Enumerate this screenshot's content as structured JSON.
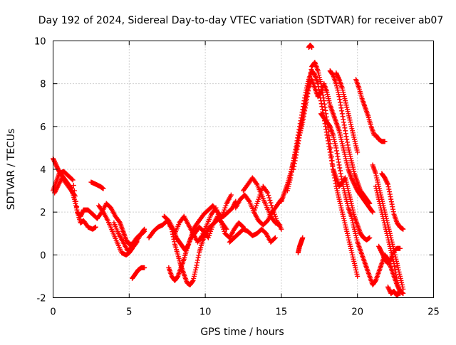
{
  "chart_data": {
    "type": "scatter",
    "title": "Day 192 of 2024, Sidereal Day-to-day VTEC variation (SDTVAR) for receiver ab07",
    "xlabel": "GPS time / hours",
    "ylabel": "SDTVAR / TECUs",
    "xlim": [
      0,
      25
    ],
    "ylim": [
      -2,
      10
    ],
    "x_ticks": [
      0,
      5,
      10,
      15,
      20,
      25
    ],
    "x_tick_labels": [
      "0",
      "5",
      "10",
      "15",
      "20",
      "25"
    ],
    "y_ticks": [
      -2,
      0,
      2,
      4,
      6,
      8,
      10
    ],
    "y_tick_labels": [
      "-2",
      "0",
      "2",
      "4",
      "6",
      "8",
      "10"
    ],
    "grid": true,
    "marker": "+",
    "series": [
      {
        "name": "SDTVAR",
        "color": "#ff0000",
        "tracks": [
          {
            "x": [
              0.0,
              0.2,
              0.4,
              0.6,
              0.8,
              1.0,
              1.2,
              1.4,
              1.6,
              1.8,
              2.0,
              2.3,
              2.6,
              2.9,
              3.2,
              3.5,
              3.8,
              4.1,
              4.4,
              4.6,
              4.8,
              5.0,
              5.2,
              5.5,
              5.8,
              6.0
            ],
            "y": [
              4.5,
              4.2,
              3.9,
              3.7,
              3.5,
              3.3,
              3.1,
              2.6,
              2.0,
              1.8,
              2.1,
              2.1,
              1.9,
              1.7,
              2.0,
              2.4,
              2.2,
              1.8,
              1.5,
              1.1,
              0.7,
              0.5,
              0.5,
              0.8,
              1.0,
              1.2
            ]
          },
          {
            "x": [
              0.0,
              0.2,
              0.4,
              0.7,
              1.0,
              1.3,
              1.6,
              1.8,
              2.0,
              2.3,
              2.6,
              2.8
            ],
            "y": [
              3.0,
              3.4,
              3.8,
              3.9,
              3.7,
              3.5,
              2.0,
              1.5,
              1.6,
              1.3,
              1.2,
              1.3
            ]
          },
          {
            "x": [
              0.1,
              0.3,
              0.6,
              0.9,
              1.2,
              1.4
            ],
            "y": [
              2.9,
              3.2,
              3.6,
              3.3,
              3.0,
              2.8
            ]
          },
          {
            "x": [
              2.5,
              2.8,
              3.1,
              3.3
            ],
            "y": [
              3.4,
              3.3,
              3.2,
              3.1
            ]
          },
          {
            "x": [
              3.0,
              3.3,
              3.6,
              3.9,
              4.2,
              4.5,
              4.8,
              5.0,
              5.2,
              5.5
            ],
            "y": [
              2.3,
              2.0,
              1.6,
              1.1,
              0.6,
              0.1,
              0.0,
              0.1,
              0.3,
              0.6
            ]
          },
          {
            "x": [
              4.0,
              4.3,
              4.6,
              4.9,
              5.1,
              5.4,
              5.7,
              6.0
            ],
            "y": [
              1.5,
              1.0,
              0.6,
              0.2,
              0.3,
              0.5,
              0.9,
              1.1
            ]
          },
          {
            "x": [
              5.2,
              5.4,
              5.6,
              5.8,
              6.0
            ],
            "y": [
              -1.1,
              -0.9,
              -0.7,
              -0.6,
              -0.6
            ]
          },
          {
            "x": [
              6.3,
              6.6,
              6.9,
              7.2,
              7.5,
              7.8,
              8.0,
              8.2,
              8.4,
              8.6,
              8.8,
              9.0,
              9.2,
              9.4,
              9.6,
              9.8,
              10.0,
              10.3,
              10.6,
              10.9,
              11.2,
              11.5,
              11.8,
              12.0
            ],
            "y": [
              0.8,
              1.1,
              1.3,
              1.4,
              1.6,
              1.2,
              0.5,
              0.0,
              -0.5,
              -0.9,
              -1.3,
              -1.4,
              -1.2,
              -0.6,
              0.1,
              0.6,
              1.0,
              1.3,
              1.5,
              1.7,
              1.8,
              2.0,
              2.2,
              2.5
            ]
          },
          {
            "x": [
              7.3,
              7.6,
              7.9,
              8.1,
              8.3,
              8.5,
              8.7,
              8.9,
              9.1,
              9.3,
              9.6,
              9.9,
              10.2,
              10.5,
              10.8,
              11.1,
              11.4,
              11.7
            ],
            "y": [
              1.8,
              1.6,
              1.2,
              0.8,
              0.6,
              0.4,
              0.2,
              0.5,
              0.9,
              1.3,
              1.6,
              1.9,
              2.1,
              2.3,
              2.0,
              1.8,
              2.4,
              2.8
            ]
          },
          {
            "x": [
              7.6,
              7.8,
              8.0,
              8.2,
              8.4,
              8.6,
              8.8,
              9.0,
              9.3,
              9.6,
              9.9,
              10.2,
              10.5,
              10.8,
              11.1,
              11.4
            ],
            "y": [
              -0.6,
              -1.0,
              -1.2,
              -1.0,
              -0.6,
              -0.2,
              0.3,
              0.7,
              1.0,
              1.3,
              1.1,
              0.8,
              1.4,
              1.8,
              1.5,
              1.2
            ]
          },
          {
            "x": [
              8.0,
              8.3,
              8.6,
              8.9,
              9.2,
              9.5,
              9.8,
              10.1,
              10.4,
              10.7,
              11.0,
              11.3,
              11.6,
              11.9,
              12.2,
              12.5
            ],
            "y": [
              1.0,
              1.5,
              1.8,
              1.4,
              1.0,
              0.6,
              0.9,
              1.4,
              1.9,
              2.2,
              1.6,
              1.0,
              0.8,
              1.2,
              1.5,
              1.3
            ]
          },
          {
            "x": [
              12.0,
              12.3,
              12.6,
              12.9,
              13.2,
              13.5,
              13.8,
              14.1,
              14.4,
              14.7,
              15.0
            ],
            "y": [
              2.2,
              2.6,
              2.8,
              2.5,
              2.0,
              1.6,
              1.4,
              1.6,
              2.0,
              2.3,
              2.6
            ]
          },
          {
            "x": [
              12.5,
              12.8,
              13.1,
              13.4,
              13.7,
              14.0,
              14.3,
              14.6,
              14.9
            ],
            "y": [
              3.0,
              3.3,
              3.6,
              3.3,
              2.8,
              2.3,
              1.8,
              1.5,
              1.4
            ]
          },
          {
            "x": [
              11.6,
              11.9,
              12.2,
              12.5,
              12.8,
              13.1,
              13.4,
              13.7,
              14.0,
              14.3,
              14.6
            ],
            "y": [
              0.6,
              0.8,
              1.0,
              1.2,
              1.1,
              0.9,
              1.0,
              1.2,
              1.0,
              0.6,
              0.8
            ]
          },
          {
            "x": [
              13.2,
              13.5,
              13.8,
              14.1,
              14.4,
              14.7,
              15.0
            ],
            "y": [
              2.0,
              2.6,
              3.2,
              2.9,
              2.2,
              1.6,
              1.2
            ]
          },
          {
            "x": [
              15.0,
              15.2,
              15.4,
              15.6,
              15.8,
              16.0,
              16.2,
              16.4,
              16.6,
              16.8,
              17.0,
              17.2,
              17.4,
              17.6,
              17.8,
              18.0,
              18.2,
              18.4,
              18.6,
              18.8,
              19.0,
              19.2,
              19.4,
              19.6,
              19.8,
              20.0
            ],
            "y": [
              2.5,
              2.9,
              3.3,
              3.8,
              4.4,
              5.0,
              5.7,
              6.4,
              7.2,
              8.0,
              8.8,
              9.0,
              8.6,
              8.0,
              7.2,
              6.3,
              5.2,
              4.0,
              3.2,
              2.6,
              2.0,
              1.4,
              0.8,
              0.2,
              -0.4,
              -1.0
            ]
          },
          {
            "x": [
              15.4,
              15.6,
              15.8,
              16.0,
              16.2,
              16.4,
              16.6,
              16.8,
              17.0,
              17.2,
              17.4,
              17.6,
              17.8,
              18.0,
              18.2,
              18.4,
              18.6,
              18.8,
              19.0,
              19.2,
              19.4,
              19.6,
              19.8,
              20.0,
              20.2,
              20.4,
              20.6,
              20.8
            ],
            "y": [
              3.0,
              3.6,
              4.4,
              5.2,
              6.0,
              6.8,
              7.6,
              8.2,
              8.6,
              8.4,
              8.0,
              7.2,
              6.4,
              5.6,
              4.8,
              4.0,
              3.6,
              3.2,
              3.4,
              3.6,
              3.0,
              2.4,
              1.8,
              1.4,
              1.0,
              0.8,
              0.7,
              0.8
            ]
          },
          {
            "x": [
              15.8,
              16.0,
              16.2,
              16.4,
              16.6,
              16.8,
              17.0,
              17.2,
              17.4,
              17.6,
              17.8,
              18.0,
              18.2,
              18.4,
              18.6,
              18.8,
              19.0,
              19.2,
              19.4,
              19.6,
              19.8,
              20.0,
              20.2,
              20.4,
              20.6,
              20.8,
              21.0
            ],
            "y": [
              4.0,
              4.8,
              5.6,
              6.2,
              7.0,
              7.8,
              8.2,
              7.8,
              7.4,
              7.6,
              8.0,
              7.6,
              7.0,
              6.6,
              6.2,
              5.8,
              5.2,
              4.6,
              4.0,
              3.6,
              3.3,
              3.0,
              2.8,
              2.6,
              2.4,
              2.2,
              2.0
            ]
          },
          {
            "x": [
              16.8,
              16.9,
              17.0
            ],
            "y": [
              9.7,
              9.8,
              9.7
            ]
          },
          {
            "x": [
              17.6,
              17.8,
              18.0,
              18.2,
              18.4,
              18.6,
              18.8,
              19.0,
              19.2,
              19.4,
              19.6,
              19.8,
              20.0,
              20.2,
              20.4,
              20.6,
              20.8,
              21.0,
              21.2,
              21.4,
              21.6,
              21.8,
              22.0,
              22.2,
              22.4,
              22.6,
              22.8
            ],
            "y": [
              6.6,
              6.4,
              6.2,
              6.0,
              5.6,
              5.0,
              4.2,
              3.4,
              2.8,
              2.2,
              1.8,
              1.2,
              0.6,
              0.2,
              -0.2,
              -0.6,
              -1.0,
              -1.4,
              -1.2,
              -0.8,
              -0.4,
              0.0,
              -0.2,
              -0.6,
              -1.0,
              -1.4,
              -1.7
            ]
          },
          {
            "x": [
              18.2,
              18.4,
              18.6,
              18.8,
              19.0,
              19.2,
              19.4,
              19.6,
              19.8,
              20.0,
              20.2,
              20.4,
              20.6,
              20.8
            ],
            "y": [
              8.6,
              8.4,
              8.0,
              7.4,
              6.6,
              5.8,
              5.0,
              4.4,
              3.8,
              3.4,
              3.0,
              2.8,
              2.6,
              2.4
            ]
          },
          {
            "x": [
              18.6,
              18.8,
              19.0,
              19.2,
              19.4,
              19.6,
              19.8,
              20.0
            ],
            "y": [
              8.5,
              8.2,
              7.8,
              7.2,
              6.6,
              6.0,
              5.4,
              4.8
            ]
          },
          {
            "x": [
              19.9,
              20.1,
              20.3,
              20.5,
              20.7,
              20.9,
              21.1
            ],
            "y": [
              8.2,
              7.8,
              7.3,
              6.9,
              6.5,
              6.0,
              5.6
            ]
          },
          {
            "x": [
              21.2,
              21.4,
              21.6,
              21.8
            ],
            "y": [
              5.6,
              5.4,
              5.3,
              5.3
            ]
          },
          {
            "x": [
              21.0,
              21.2,
              21.4,
              21.6,
              21.8,
              22.0,
              22.2,
              22.4,
              22.6,
              22.8,
              23.0
            ],
            "y": [
              4.2,
              3.8,
              3.2,
              2.6,
              2.0,
              1.4,
              0.8,
              0.2,
              -0.4,
              -1.0,
              -1.6
            ]
          },
          {
            "x": [
              21.2,
              21.4,
              21.6,
              21.8,
              22.0,
              22.2,
              22.4,
              22.6,
              22.8
            ],
            "y": [
              3.2,
              2.6,
              2.0,
              1.4,
              0.8,
              0.2,
              -0.4,
              -1.2,
              -1.8
            ]
          },
          {
            "x": [
              21.6,
              21.8,
              22.0,
              22.2,
              22.4,
              22.6,
              22.8,
              23.0
            ],
            "y": [
              3.8,
              3.6,
              3.3,
              2.6,
              1.9,
              1.5,
              1.3,
              1.2
            ]
          },
          {
            "x": [
              21.4,
              21.6,
              21.8,
              22.0,
              22.2,
              22.4,
              22.6,
              22.8
            ],
            "y": [
              0.4,
              0.1,
              -0.2,
              -0.4,
              -0.2,
              0.2,
              0.3,
              0.3
            ]
          },
          {
            "x": [
              22.0,
              22.2,
              22.4,
              22.6,
              22.8,
              23.0
            ],
            "y": [
              -1.5,
              -1.8,
              -1.7,
              -1.9,
              -1.7,
              -1.8
            ]
          },
          {
            "x": [
              16.1,
              16.2,
              16.3,
              16.4
            ],
            "y": [
              0.1,
              0.4,
              0.6,
              0.8
            ]
          }
        ]
      }
    ]
  }
}
